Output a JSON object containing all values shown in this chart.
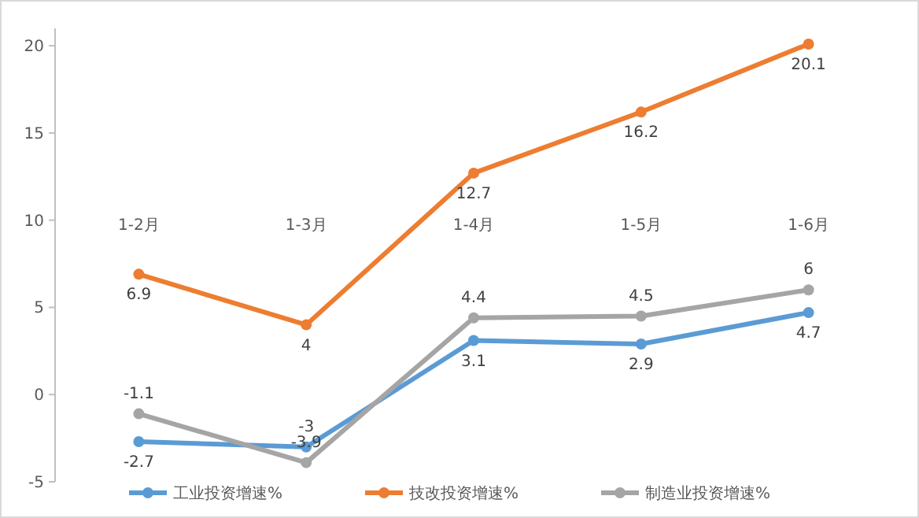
{
  "chart_data": {
    "type": "line",
    "categories": [
      "1-2月",
      "1-3月",
      "1-4月",
      "1-5月",
      "1-6月"
    ],
    "series": [
      {
        "name": "工业投资增速%",
        "color": "#5b9bd5",
        "values": [
          -2.7,
          -3,
          3.1,
          2.9,
          4.7
        ]
      },
      {
        "name": "技改投资增速%",
        "color": "#ed7d31",
        "values": [
          6.9,
          4,
          12.7,
          16.2,
          20.1
        ]
      },
      {
        "name": "制造业投资增速%",
        "color": "#a5a5a5",
        "values": [
          -1.1,
          -3.9,
          4.4,
          4.5,
          6
        ]
      }
    ],
    "ylim": [
      -5,
      21
    ],
    "yticks": [
      -5,
      0,
      5,
      10,
      15,
      20
    ],
    "grid": false,
    "legend": "bottom",
    "marker": "circle",
    "line_style": "solid",
    "data_labels": true
  }
}
